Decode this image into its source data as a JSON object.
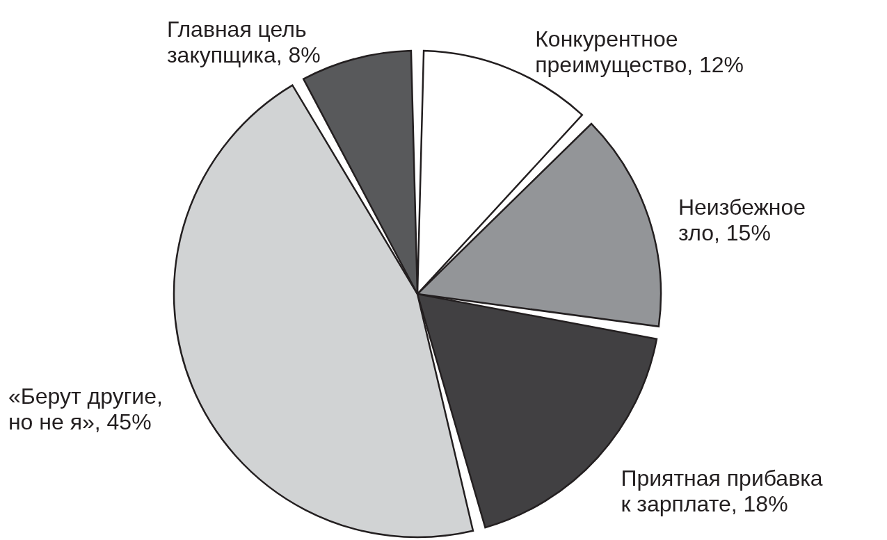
{
  "chart_data": {
    "type": "pie",
    "categories": [
      "Конкурентное преимущество",
      "Неизбежное зло",
      "Приятная прибавка к зарплате",
      "«Берут другие, но не я»",
      "Главная цель закупщика"
    ],
    "values": [
      12,
      15,
      18,
      45,
      8
    ],
    "colors": [
      "#ffffff",
      "#939598",
      "#414042",
      "#d1d3d4",
      "#58595b"
    ],
    "value_labels": [
      "12%",
      "15%",
      "18%",
      "45%",
      "8%"
    ]
  }
}
